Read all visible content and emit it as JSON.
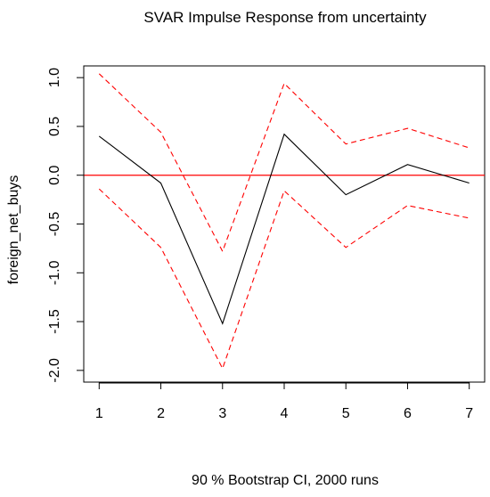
{
  "chart_data": {
    "type": "line",
    "title": "SVAR Impulse Response from uncertainty",
    "xlabel": "90 % Bootstrap CI,  2000 runs",
    "ylabel": "foreign_net_buys",
    "x": [
      1,
      2,
      3,
      4,
      5,
      6,
      7
    ],
    "xticks": [
      "1",
      "2",
      "3",
      "4",
      "5",
      "6",
      "7"
    ],
    "yticks": [
      "-2.0",
      "-1.5",
      "-1.0",
      "-0.5",
      "0.0",
      "0.5",
      "1.0"
    ],
    "ylim": [
      -2.0,
      1.0
    ],
    "series": [
      {
        "role": "impulse-response",
        "color": "#000000",
        "dash": "solid",
        "values": [
          0.4,
          -0.08,
          -1.52,
          0.42,
          -0.2,
          0.11,
          -0.08
        ]
      },
      {
        "role": "upper-ci",
        "color": "#ff0000",
        "dash": "dashed",
        "values": [
          1.04,
          0.44,
          -0.78,
          0.94,
          0.32,
          0.48,
          0.28
        ]
      },
      {
        "role": "lower-ci",
        "color": "#ff0000",
        "dash": "dashed",
        "values": [
          -0.14,
          -0.74,
          -1.98,
          -0.16,
          -0.74,
          -0.31,
          -0.44
        ]
      }
    ],
    "reference_line": {
      "value": 0.0,
      "color": "#ff0000"
    },
    "grid": false,
    "legend": "none"
  }
}
